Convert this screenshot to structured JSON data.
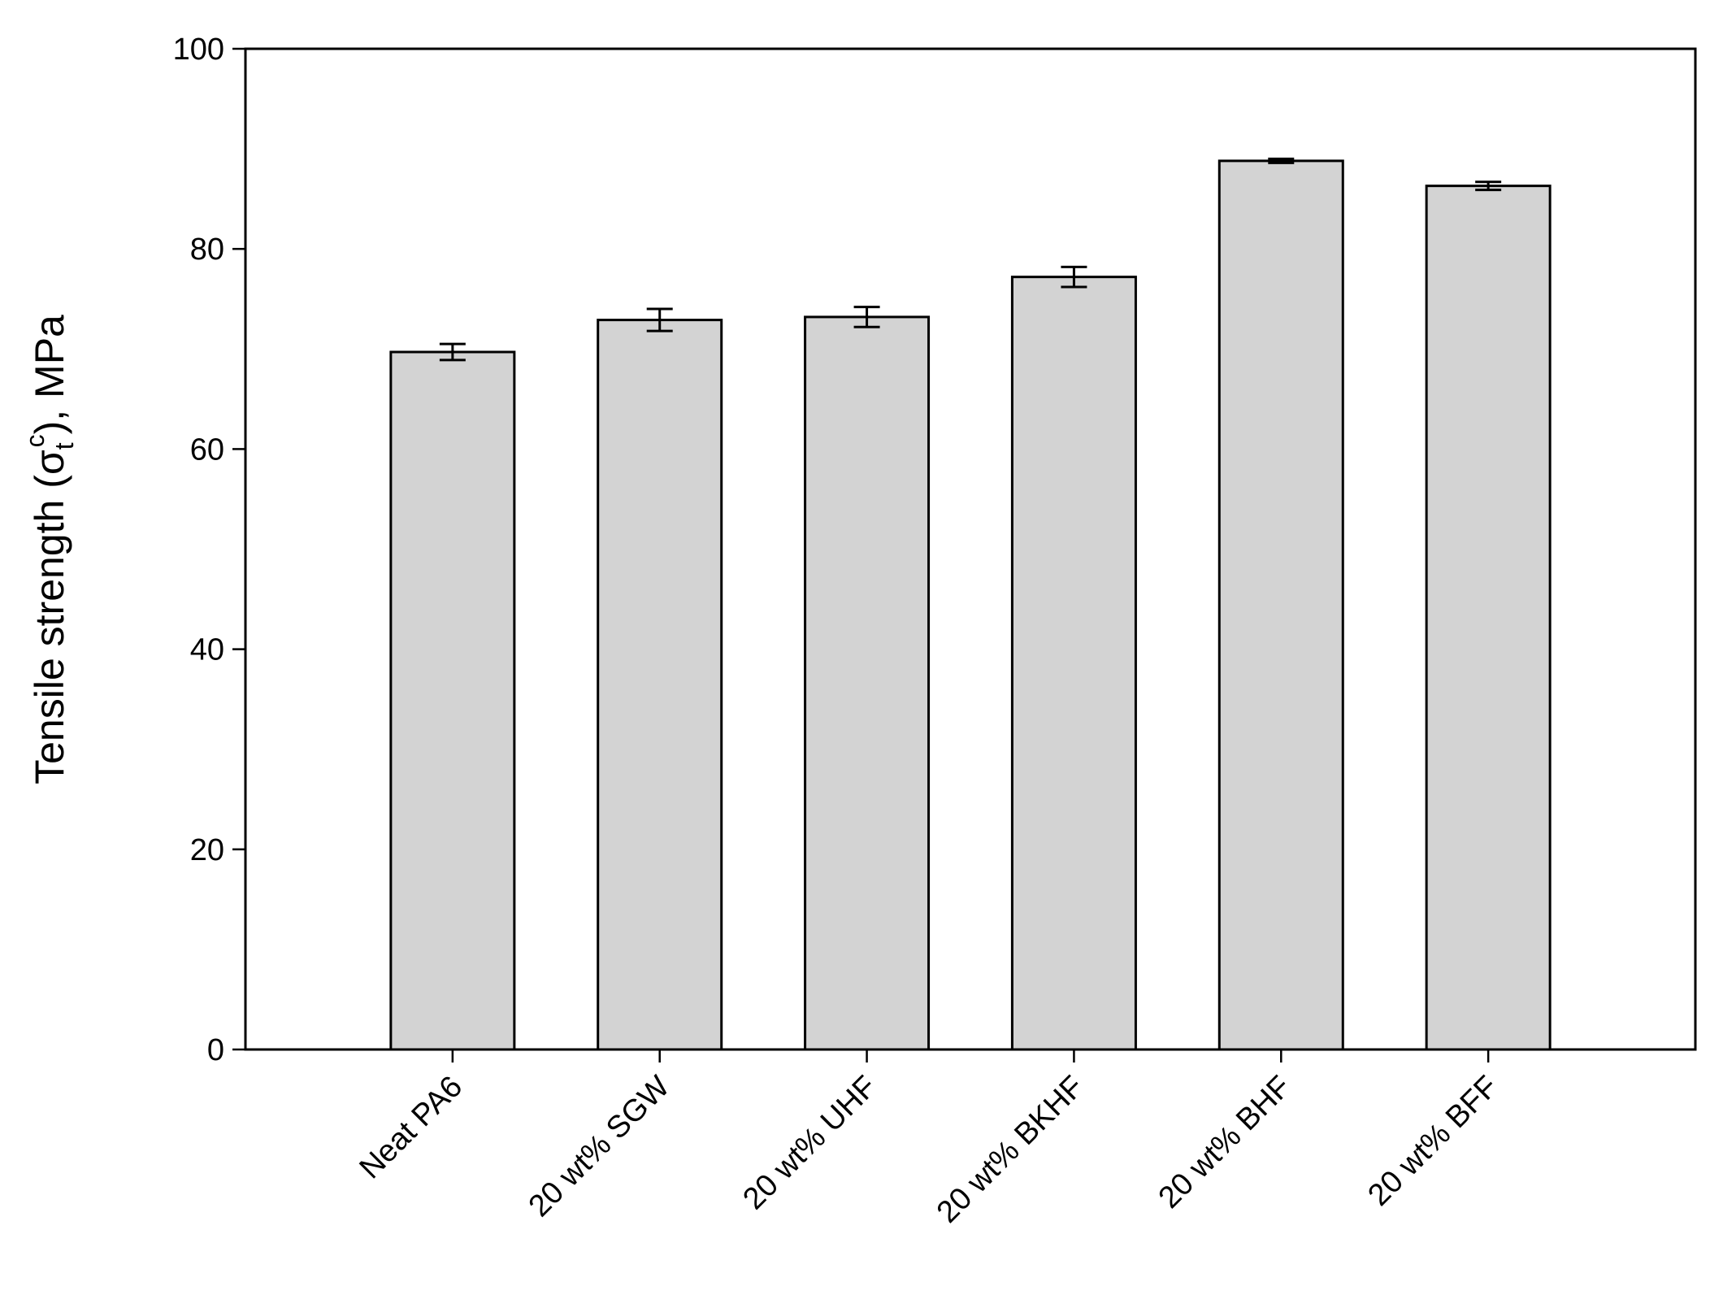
{
  "chart_data": {
    "type": "bar",
    "ylabel": {
      "prefix": "Tensile strength (σ",
      "sub": "t",
      "sup": "c",
      "suffix": "), MPa"
    },
    "categories": [
      "Neat PA6",
      "20 wt% SGW",
      "20 wt% UHF",
      "20 wt% BKHF",
      "20 wt% BHF",
      "20 wt% BFF"
    ],
    "values": [
      69.7,
      72.9,
      73.2,
      77.2,
      88.8,
      86.3
    ],
    "errors": [
      0.8,
      1.1,
      1.0,
      1.0,
      0.2,
      0.4
    ],
    "color": "#d3d3d3",
    "ylim": [
      0,
      100
    ],
    "yticks": [
      0,
      20,
      40,
      60,
      80,
      100
    ],
    "grid": false
  }
}
